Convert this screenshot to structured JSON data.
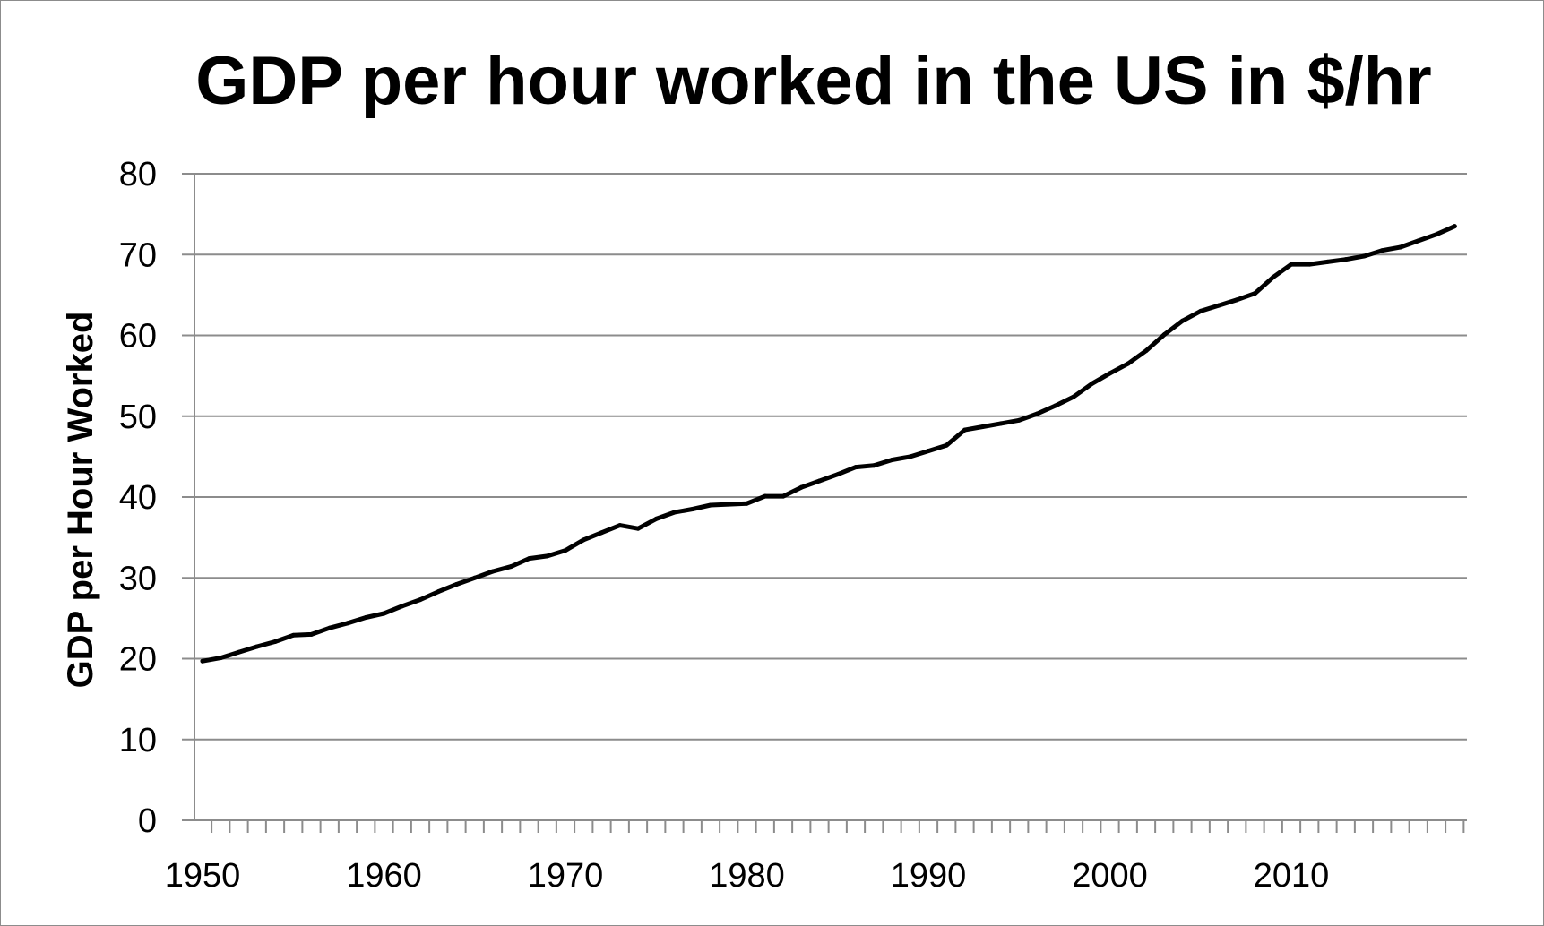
{
  "chart_data": {
    "type": "line",
    "title": "GDP per hour worked in the US in $/hr",
    "xlabel": "",
    "ylabel": "GDP per Hour Worked",
    "xlim": [
      1950,
      2019
    ],
    "ylim": [
      0,
      80
    ],
    "yticks": [
      0,
      10,
      20,
      30,
      40,
      50,
      60,
      70,
      80
    ],
    "xticks": [
      1950,
      1960,
      1970,
      1980,
      1990,
      2000,
      2010
    ],
    "grid": "horizontal",
    "legend": "none",
    "line_color": "#000000",
    "series": [
      {
        "name": "GDP per hour worked",
        "x": [
          1950,
          1951,
          1952,
          1953,
          1954,
          1955,
          1956,
          1957,
          1958,
          1959,
          1960,
          1961,
          1962,
          1963,
          1964,
          1965,
          1966,
          1967,
          1968,
          1969,
          1970,
          1971,
          1972,
          1973,
          1974,
          1975,
          1976,
          1977,
          1978,
          1979,
          1980,
          1981,
          1982,
          1983,
          1984,
          1985,
          1986,
          1987,
          1988,
          1989,
          1990,
          1991,
          1992,
          1993,
          1994,
          1995,
          1996,
          1997,
          1998,
          1999,
          2000,
          2001,
          2002,
          2003,
          2004,
          2005,
          2006,
          2007,
          2008,
          2009,
          2010,
          2011,
          2012,
          2013,
          2014,
          2015,
          2016,
          2017,
          2018,
          2019
        ],
        "values": [
          19.7,
          20.1,
          20.8,
          21.5,
          22.1,
          22.9,
          23.0,
          23.8,
          24.4,
          25.1,
          25.6,
          26.5,
          27.3,
          28.3,
          29.2,
          30.0,
          30.8,
          31.4,
          32.4,
          32.7,
          33.4,
          34.7,
          35.6,
          36.5,
          36.1,
          37.3,
          38.1,
          38.5,
          39.0,
          39.1,
          39.2,
          40.1,
          40.1,
          41.2,
          42.0,
          42.8,
          43.7,
          43.9,
          44.6,
          45.0,
          45.7,
          46.4,
          48.3,
          48.7,
          49.1,
          49.5,
          50.3,
          51.3,
          52.4,
          54.0,
          55.3,
          56.5,
          58.1,
          60.1,
          61.8,
          63.0,
          63.7,
          64.4,
          65.2,
          67.2,
          68.8,
          68.8,
          69.1,
          69.4,
          69.8,
          70.5,
          70.9,
          71.7,
          72.5,
          73.5
        ]
      }
    ]
  }
}
